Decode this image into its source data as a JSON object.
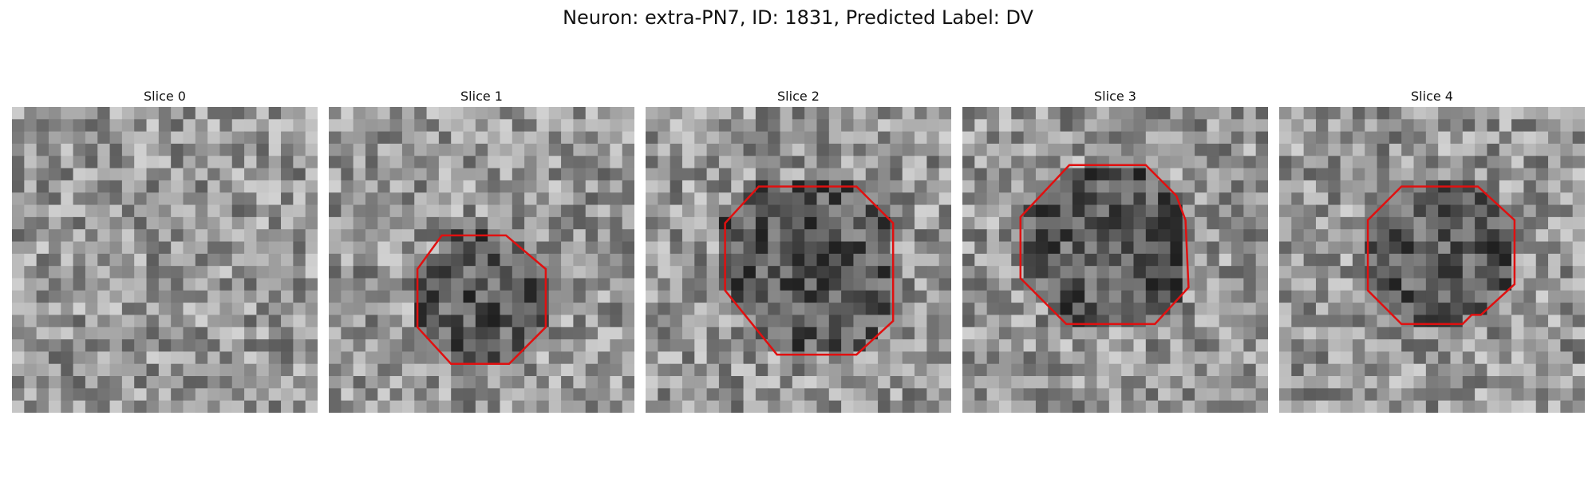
{
  "figure": {
    "title": "Neuron: extra-PN7, ID: 1831, Predicted Label: DV"
  },
  "colors": {
    "contour": "#e01010",
    "background": "#ffffff"
  },
  "slices": [
    {
      "title": "Slice 0",
      "has_contour": false,
      "contour_polygon": []
    },
    {
      "title": "Slice 1",
      "has_contour": true,
      "contour_polygon": [
        [
          0.37,
          0.42
        ],
        [
          0.58,
          0.42
        ],
        [
          0.71,
          0.53
        ],
        [
          0.71,
          0.72
        ],
        [
          0.59,
          0.84
        ],
        [
          0.4,
          0.84
        ],
        [
          0.29,
          0.72
        ],
        [
          0.29,
          0.53
        ]
      ]
    },
    {
      "title": "Slice 2",
      "has_contour": true,
      "contour_polygon": [
        [
          0.37,
          0.26
        ],
        [
          0.69,
          0.26
        ],
        [
          0.81,
          0.38
        ],
        [
          0.81,
          0.7
        ],
        [
          0.69,
          0.81
        ],
        [
          0.43,
          0.81
        ],
        [
          0.26,
          0.6
        ],
        [
          0.26,
          0.38
        ]
      ]
    },
    {
      "title": "Slice 3",
      "has_contour": true,
      "contour_polygon": [
        [
          0.35,
          0.19
        ],
        [
          0.6,
          0.19
        ],
        [
          0.7,
          0.29
        ],
        [
          0.73,
          0.37
        ],
        [
          0.74,
          0.59
        ],
        [
          0.63,
          0.71
        ],
        [
          0.34,
          0.71
        ],
        [
          0.19,
          0.56
        ],
        [
          0.19,
          0.36
        ]
      ]
    },
    {
      "title": "Slice 4",
      "has_contour": true,
      "contour_polygon": [
        [
          0.4,
          0.26
        ],
        [
          0.65,
          0.26
        ],
        [
          0.77,
          0.37
        ],
        [
          0.77,
          0.58
        ],
        [
          0.66,
          0.68
        ],
        [
          0.63,
          0.68
        ],
        [
          0.6,
          0.71
        ],
        [
          0.4,
          0.71
        ],
        [
          0.29,
          0.6
        ],
        [
          0.29,
          0.37
        ]
      ]
    }
  ]
}
